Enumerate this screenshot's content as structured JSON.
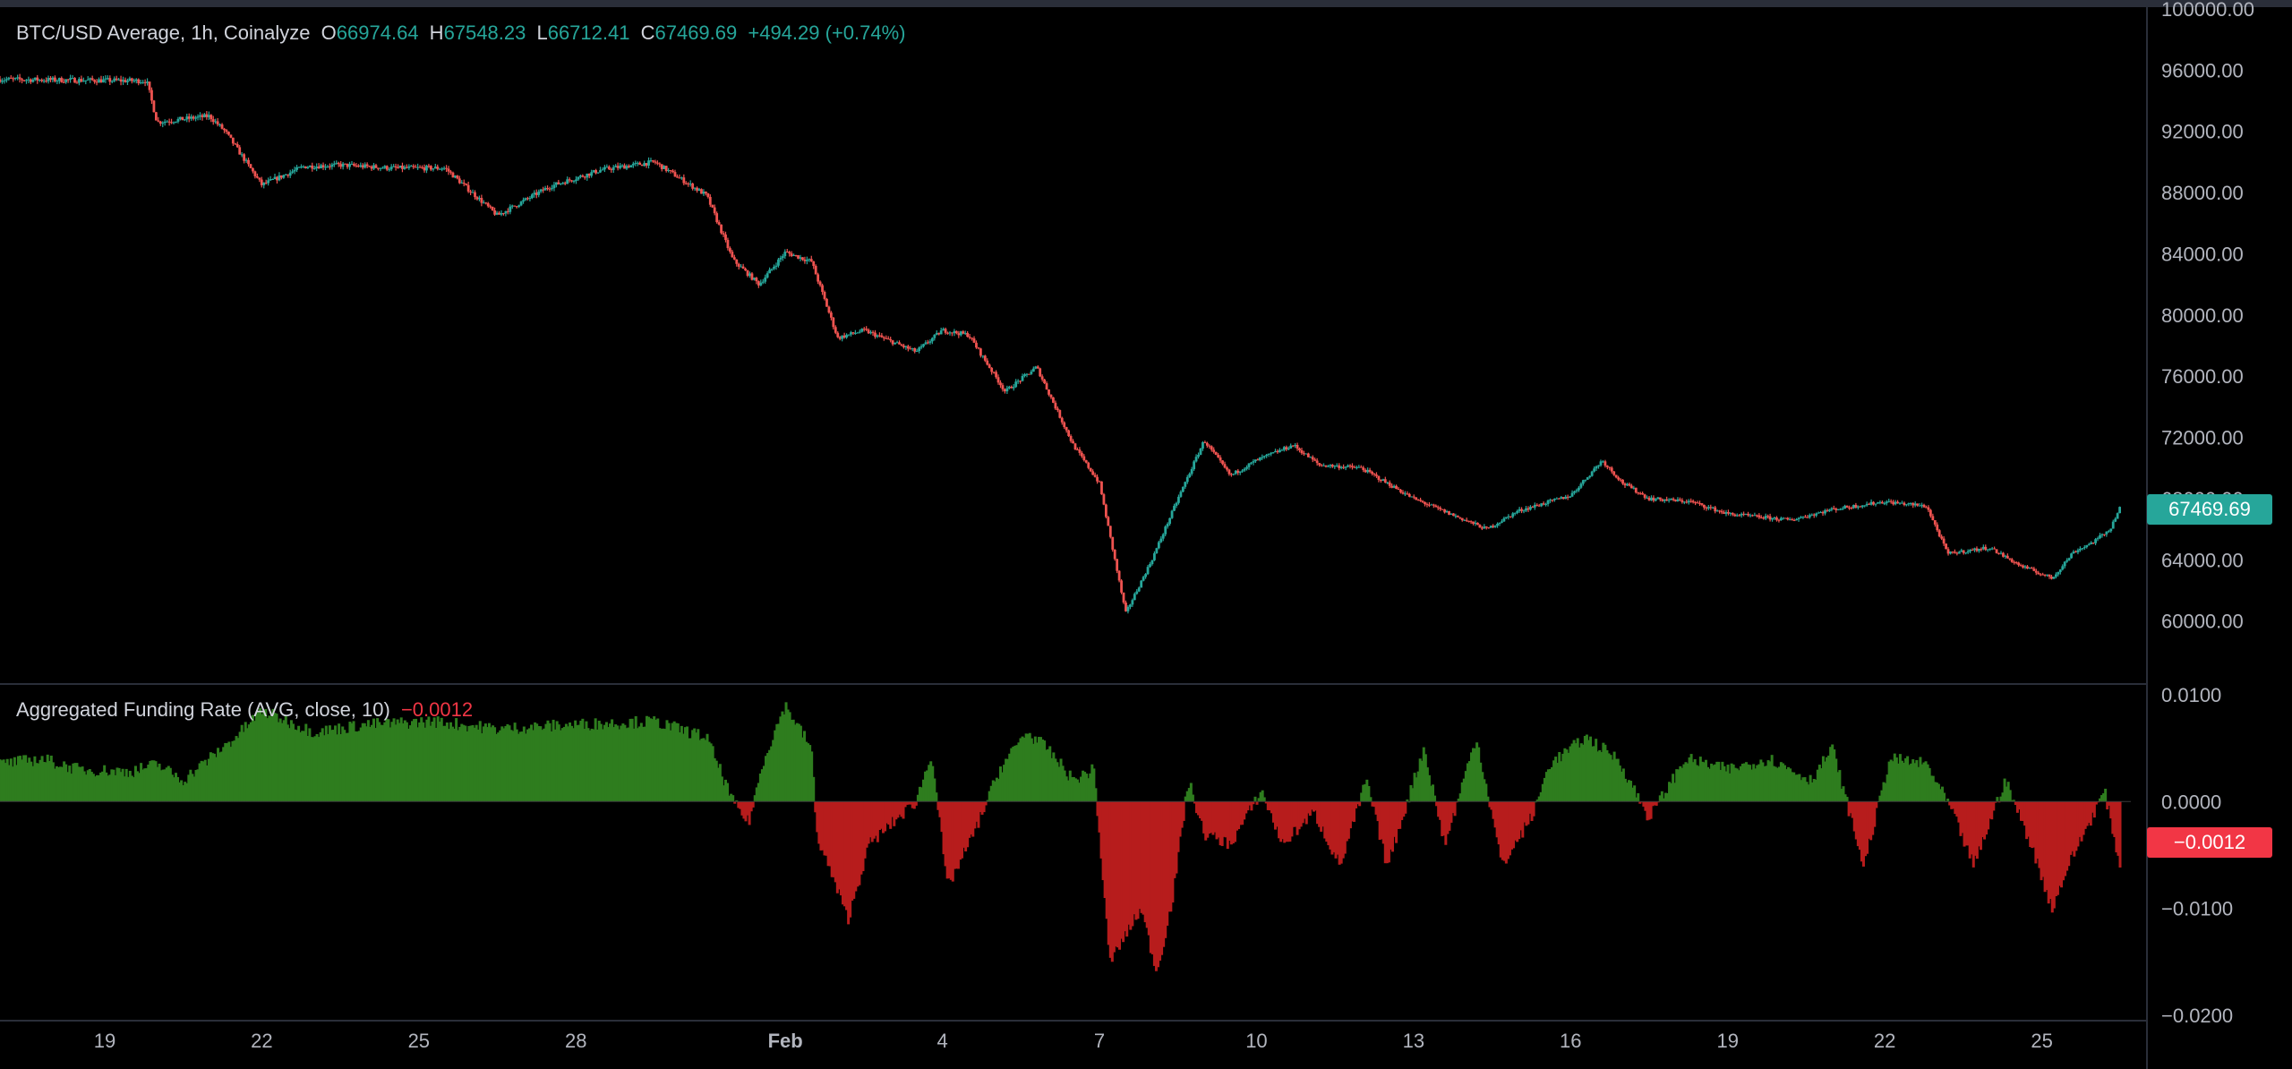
{
  "legend": {
    "symbol": "BTC/USD Average, 1h, Coinalyze",
    "open_label": "O",
    "open": "66974.64",
    "high_label": "H",
    "high": "67548.23",
    "low_label": "L",
    "low": "66712.41",
    "close_label": "C",
    "close": "67469.69",
    "change": "+494.29 (+0.74%)"
  },
  "indicator": {
    "title": "Aggregated Funding Rate (AVG, close, 10)",
    "value": "−0.0012"
  },
  "price_tag": "67469.69",
  "funding_tag": "−0.0012",
  "colors": {
    "up": "#26a69a",
    "down": "#ef5350",
    "pos_bar": "#2e7d1e",
    "neg_bar": "#b71c1c",
    "tag_price": "#26a69a",
    "tag_funding": "#f23645"
  },
  "chart_data": [
    {
      "type": "candlestick",
      "title": "BTC/USD Average, 1h, Coinalyze",
      "ylim": [
        56000,
        100000
      ],
      "y_ticks": [
        "60000.00",
        "64000.00",
        "68000.00",
        "72000.00",
        "76000.00",
        "80000.00",
        "84000.00",
        "88000.00",
        "92000.00",
        "96000.00",
        "100000.00"
      ],
      "y_tick_values": [
        60000,
        64000,
        68000,
        72000,
        76000,
        80000,
        84000,
        88000,
        92000,
        96000,
        100000
      ],
      "x_ticks": [
        "19",
        "22",
        "25",
        "28",
        "Feb",
        "4",
        "7",
        "10",
        "13",
        "16",
        "19",
        "22",
        "25"
      ],
      "x_tick_days": [
        2,
        5,
        8,
        11,
        15,
        18,
        21,
        24,
        27,
        30,
        33,
        36,
        39
      ],
      "date_range_days": [
        0,
        40.7
      ],
      "path": [
        [
          0,
          95400
        ],
        [
          2.8,
          95300
        ],
        [
          3,
          92600
        ],
        [
          4,
          93000
        ],
        [
          4.3,
          92000
        ],
        [
          5,
          88500
        ],
        [
          5.8,
          89700
        ],
        [
          6.5,
          89800
        ],
        [
          7.5,
          89600
        ],
        [
          8.5,
          89600
        ],
        [
          9.5,
          86500
        ],
        [
          10.5,
          88400
        ],
        [
          11.5,
          89500
        ],
        [
          12.5,
          90000
        ],
        [
          13.5,
          87800
        ],
        [
          14,
          83600
        ],
        [
          14.5,
          82000
        ],
        [
          15,
          84100
        ],
        [
          15.5,
          83500
        ],
        [
          16,
          78500
        ],
        [
          16.5,
          79000
        ],
        [
          17.5,
          77600
        ],
        [
          18,
          79000
        ],
        [
          18.5,
          78700
        ],
        [
          19.2,
          75000
        ],
        [
          19.8,
          76600
        ],
        [
          20.5,
          71500
        ],
        [
          21,
          69000
        ],
        [
          21.5,
          60500
        ],
        [
          22,
          64000
        ],
        [
          22.5,
          68000
        ],
        [
          23,
          71800
        ],
        [
          23.5,
          69500
        ],
        [
          24,
          70500
        ],
        [
          24.7,
          71500
        ],
        [
          25.2,
          70200
        ],
        [
          26,
          70000
        ],
        [
          27,
          68000
        ],
        [
          27.7,
          67000
        ],
        [
          28.4,
          66000
        ],
        [
          29,
          67200
        ],
        [
          30,
          68200
        ],
        [
          30.6,
          70500
        ],
        [
          31,
          69000
        ],
        [
          31.5,
          68000
        ],
        [
          32.3,
          67800
        ],
        [
          33,
          67000
        ],
        [
          34.2,
          66600
        ],
        [
          35,
          67300
        ],
        [
          36,
          67800
        ],
        [
          36.8,
          67500
        ],
        [
          37.2,
          64400
        ],
        [
          38,
          64800
        ],
        [
          38.6,
          63600
        ],
        [
          39.2,
          62800
        ],
        [
          39.6,
          64500
        ],
        [
          40,
          65200
        ],
        [
          40.3,
          66000
        ],
        [
          40.5,
          67470
        ]
      ],
      "last_price": 67469.69
    },
    {
      "type": "bar",
      "title": "Aggregated Funding Rate (AVG, close, 10)",
      "ylim": [
        -0.0205,
        0.011
      ],
      "y_ticks": [
        "0.0100",
        "0.0000",
        "−0.0100",
        "−0.0200"
      ],
      "y_tick_values": [
        0.01,
        0,
        -0.01,
        -0.02
      ],
      "path": [
        [
          0,
          0.0035
        ],
        [
          0.8,
          0.004
        ],
        [
          1.5,
          0.003
        ],
        [
          2.5,
          0.0028
        ],
        [
          3,
          0.0035
        ],
        [
          3.5,
          0.002
        ],
        [
          4.5,
          0.006
        ],
        [
          5,
          0.0085
        ],
        [
          6,
          0.0065
        ],
        [
          7,
          0.0072
        ],
        [
          8.3,
          0.0075
        ],
        [
          9.5,
          0.0068
        ],
        [
          11,
          0.0072
        ],
        [
          12.5,
          0.0075
        ],
        [
          13.5,
          0.006
        ],
        [
          14,
          0.0
        ],
        [
          14.3,
          -0.002
        ],
        [
          14.6,
          0.004
        ],
        [
          15,
          0.009
        ],
        [
          15.5,
          0.005
        ],
        [
          15.6,
          -0.003
        ],
        [
          16.2,
          -0.011
        ],
        [
          16.6,
          -0.004
        ],
        [
          17.5,
          0.0
        ],
        [
          17.8,
          0.0045
        ],
        [
          18.1,
          -0.008
        ],
        [
          18.6,
          -0.003
        ],
        [
          19.1,
          0.003
        ],
        [
          19.6,
          0.0065
        ],
        [
          20,
          0.005
        ],
        [
          20.5,
          0.002
        ],
        [
          20.9,
          0.003
        ],
        [
          21.2,
          -0.015
        ],
        [
          21.8,
          -0.01
        ],
        [
          22.1,
          -0.016
        ],
        [
          22.4,
          -0.009
        ],
        [
          22.7,
          0.002
        ],
        [
          23,
          -0.003
        ],
        [
          23.5,
          -0.004
        ],
        [
          24.1,
          0.001
        ],
        [
          24.5,
          -0.004
        ],
        [
          25.1,
          -0.001
        ],
        [
          25.6,
          -0.006
        ],
        [
          26.1,
          0.002
        ],
        [
          26.5,
          -0.006
        ],
        [
          27.2,
          0.005
        ],
        [
          27.6,
          -0.004
        ],
        [
          28.2,
          0.006
        ],
        [
          28.7,
          -0.006
        ],
        [
          29.3,
          -0.001
        ],
        [
          29.6,
          0.0035
        ],
        [
          30.3,
          0.006
        ],
        [
          30.9,
          0.004
        ],
        [
          31.5,
          -0.0015
        ],
        [
          32.2,
          0.004
        ],
        [
          33,
          0.003
        ],
        [
          33.8,
          0.004
        ],
        [
          34.6,
          0.002
        ],
        [
          35,
          0.005
        ],
        [
          35.6,
          -0.006
        ],
        [
          36.1,
          0.004
        ],
        [
          36.8,
          0.0035
        ],
        [
          37.3,
          -0.001
        ],
        [
          37.7,
          -0.006
        ],
        [
          38.3,
          0.002
        ],
        [
          38.8,
          -0.004
        ],
        [
          39.2,
          -0.01
        ],
        [
          39.5,
          -0.006
        ],
        [
          40.2,
          0.001
        ],
        [
          40.5,
          -0.006
        ]
      ],
      "last_value": -0.0012
    }
  ]
}
